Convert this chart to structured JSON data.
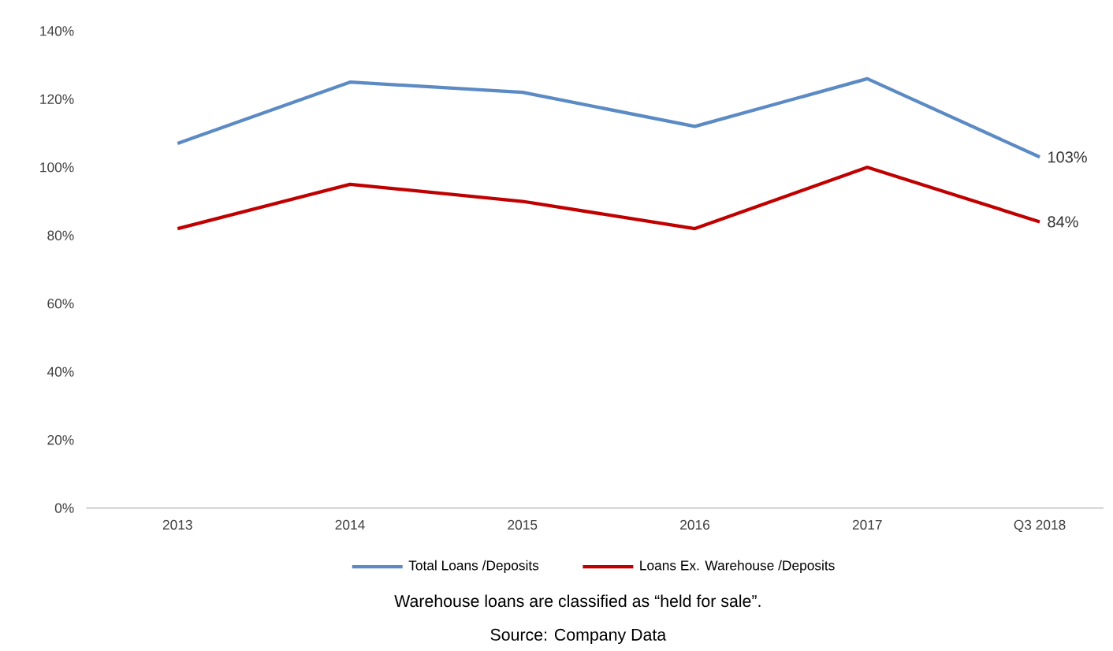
{
  "chart_data": {
    "type": "line",
    "categories": [
      "2013",
      "2014",
      "2015",
      "2016",
      "2017",
      "Q3 2018"
    ],
    "series": [
      {
        "name": "Total Loans /Deposits",
        "color": "#5b8ac4",
        "values": [
          107,
          125,
          122,
          112,
          126,
          103
        ],
        "value_labels": [
          null,
          null,
          null,
          null,
          null,
          "103%"
        ]
      },
      {
        "name": "Loans Ex. Warehouse /Deposits",
        "color": "#c00000",
        "values": [
          82,
          95,
          90,
          82,
          100,
          84
        ],
        "value_labels": [
          null,
          null,
          null,
          null,
          null,
          "84%"
        ]
      }
    ],
    "ylim": [
      0,
      140
    ],
    "yticks": [
      {
        "value": 0,
        "label": "0%"
      },
      {
        "value": 20,
        "label": "20%"
      },
      {
        "value": 40,
        "label": "40%"
      },
      {
        "value": 60,
        "label": "60%"
      },
      {
        "value": 80,
        "label": "80%"
      },
      {
        "value": 100,
        "label": "100%"
      },
      {
        "value": 120,
        "label": "120%"
      },
      {
        "value": 140,
        "label": "140%"
      }
    ],
    "legend": "bottom",
    "annotations": [
      "Warehouse loans are classified as “held for sale”.",
      "Source:  Company Data"
    ]
  }
}
